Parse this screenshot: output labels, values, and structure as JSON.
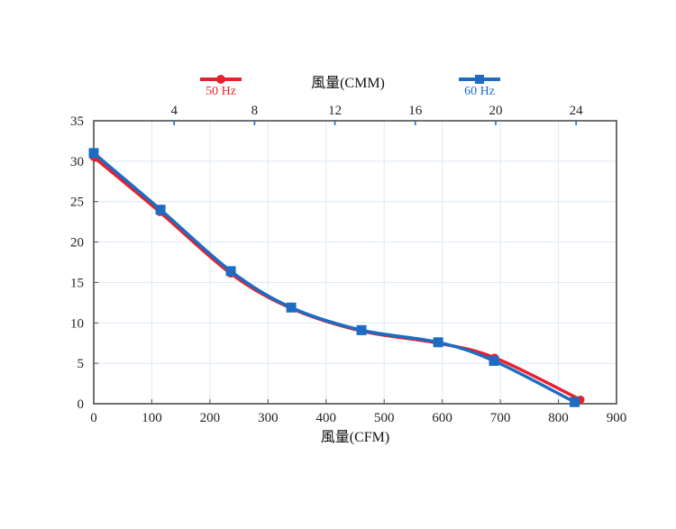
{
  "chart_data": {
    "type": "line",
    "title": "",
    "legend_position": "top",
    "grid": true,
    "top_axis": {
      "title": "風量(CMM)",
      "ticks": [
        4,
        8,
        12,
        16,
        20,
        24
      ],
      "cfm_per_cmm": 34.6
    },
    "bottom_axis": {
      "title": "風量(CFM)",
      "ticks": [
        0,
        100,
        200,
        300,
        400,
        500,
        600,
        700,
        800,
        900
      ],
      "lim": [
        0,
        900
      ]
    },
    "y_axis": {
      "label": "",
      "ticks": [
        0,
        5,
        10,
        15,
        20,
        25,
        30,
        35
      ],
      "lim": [
        0,
        35
      ]
    },
    "series": [
      {
        "name": "50 Hz",
        "color": "#e7212e",
        "marker": "circle",
        "points": [
          [
            0,
            30.5
          ],
          [
            114,
            23.7
          ],
          [
            236,
            16.1
          ],
          [
            340,
            11.8
          ],
          [
            461,
            9.0
          ],
          [
            592,
            7.5
          ],
          [
            690,
            5.7
          ],
          [
            838,
            0.5
          ]
        ]
      },
      {
        "name": "60 Hz",
        "color": "#1b6cc2",
        "marker": "square",
        "points": [
          [
            0,
            31
          ],
          [
            115,
            24
          ],
          [
            236,
            16.4
          ],
          [
            340,
            11.9
          ],
          [
            461,
            9.1
          ],
          [
            593,
            7.6
          ],
          [
            689,
            5.3
          ],
          [
            828,
            0.2
          ]
        ]
      }
    ],
    "colors": {
      "gridline": "#dce8f6",
      "axis_border": "#4d4d4d",
      "top_tick": "#1b6cc2"
    }
  }
}
